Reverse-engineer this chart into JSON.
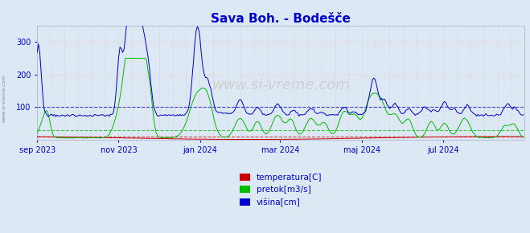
{
  "title": "Sava Boh. - Bodešče",
  "title_color": "#0000cc",
  "bg_color": "#dce9f5",
  "plot_bg_color": "#dce9f5",
  "colors": {
    "temperatura": "#cc0000",
    "pretok": "#00bb00",
    "visina": "#0000cc"
  },
  "legend_labels": [
    "temperatura[C]",
    "pretok[m3/s]",
    "višina[cm]"
  ],
  "legend_colors": [
    "#cc0000",
    "#00bb00",
    "#0000cc"
  ],
  "x_tick_labels": [
    "sep 2023",
    "nov 2023",
    "jan 2024",
    "mar 2024",
    "maj 2024",
    "jul 2024"
  ],
  "x_tick_positions": [
    0,
    61,
    122,
    182,
    243,
    304
  ],
  "ylim": [
    0,
    350
  ],
  "yticks": [
    100,
    200,
    300
  ],
  "hline_blue_y": 100,
  "hline_green_y": 30,
  "hline_red_y": 10,
  "sidebar_text": "www.si-vreme.com",
  "watermark": "www.si-vreme.com"
}
